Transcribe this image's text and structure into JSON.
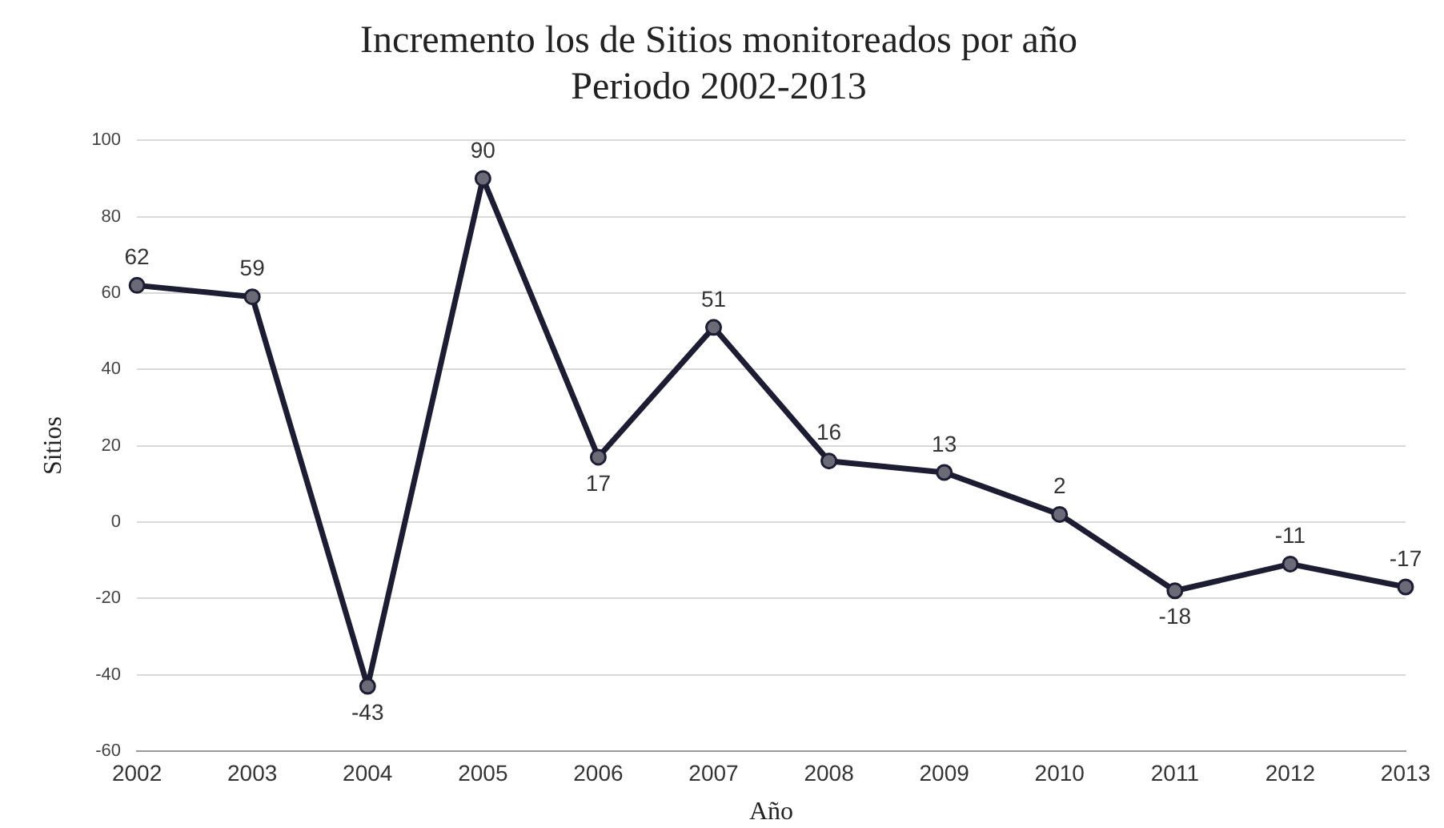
{
  "chart_data": {
    "type": "line",
    "title": "Incremento los de Sitios monitoreados por año\nPeriodo 2002-2013",
    "xlabel": "Año",
    "ylabel": "Sitios",
    "categories": [
      "2002",
      "2003",
      "2004",
      "2005",
      "2006",
      "2007",
      "2008",
      "2009",
      "2010",
      "2011",
      "2012",
      "2013"
    ],
    "series": [
      {
        "color": "#1c1c33",
        "values": [
          62,
          59,
          -43,
          90,
          17,
          51,
          16,
          13,
          2,
          -18,
          -11,
          -17
        ]
      }
    ],
    "ylim": [
      -60,
      100
    ],
    "yticks": [
      -60,
      -40,
      -20,
      0,
      20,
      40,
      60,
      80,
      100
    ],
    "grid": "y",
    "legend": false,
    "marker": "circle",
    "line_style": "solid",
    "data_labels": true
  }
}
